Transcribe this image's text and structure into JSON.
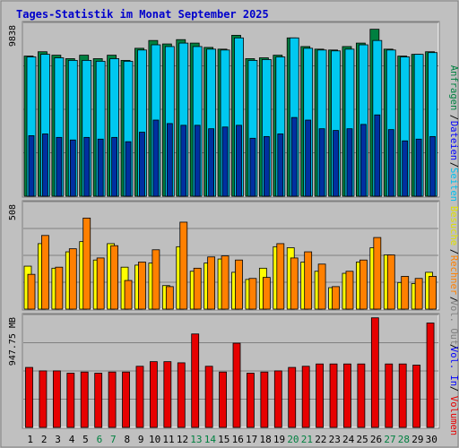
{
  "title": "Tages-Statistik im Monat September 2025",
  "colors": {
    "background": "#c0c0c0",
    "panel": "#bfbfbf",
    "grid": "#808080",
    "title": "#0000cc",
    "anfragen": "#008040",
    "dateien": "#00c8f0",
    "seiten": "#00a0d0",
    "besuche": "#ffff00",
    "rechner": "#ff8000",
    "volumen": "#e60000",
    "weekend": "#008040",
    "weekday": "#000000"
  },
  "chart_data": [
    {
      "type": "bar",
      "panel": "top",
      "y_max_label": "9838",
      "ylim": [
        0,
        9838
      ],
      "grid": true,
      "categories": [
        1,
        2,
        3,
        4,
        5,
        6,
        7,
        8,
        9,
        10,
        11,
        12,
        13,
        14,
        15,
        16,
        17,
        18,
        19,
        20,
        21,
        22,
        23,
        24,
        25,
        26,
        27,
        28,
        29,
        30
      ],
      "weekend_days": [
        6,
        7,
        13,
        14,
        20,
        21,
        27,
        28
      ],
      "series": [
        {
          "name": "Anfragen",
          "values": [
            8100,
            8350,
            8150,
            7950,
            8150,
            7950,
            8150,
            7850,
            8550,
            9000,
            8800,
            9050,
            8850,
            8600,
            8500,
            9300,
            7950,
            8000,
            8150,
            9150,
            8650,
            8500,
            8450,
            8650,
            8850,
            9650,
            8500,
            8100,
            8200,
            8350
          ]
        },
        {
          "name": "Dateien",
          "values": [
            8050,
            8200,
            8000,
            7850,
            7850,
            7800,
            7950,
            7800,
            8450,
            8750,
            8650,
            8850,
            8650,
            8500,
            8450,
            9150,
            7850,
            7900,
            8050,
            9150,
            8550,
            8450,
            8400,
            8500,
            8750,
            9000,
            8450,
            8050,
            8200,
            8300
          ]
        },
        {
          "name": "Seiten",
          "values": [
            3500,
            3600,
            3400,
            3250,
            3400,
            3300,
            3400,
            3150,
            3700,
            4400,
            4200,
            4100,
            4100,
            3900,
            4000,
            4100,
            3350,
            3450,
            3600,
            4550,
            4400,
            3900,
            3800,
            3900,
            4150,
            4700,
            3850,
            3200,
            3300,
            3450
          ]
        }
      ],
      "side_labels": [
        "Anfragen",
        "Dateien",
        "Seiten"
      ]
    },
    {
      "type": "bar",
      "panel": "middle",
      "y_max_label": "508",
      "ylim": [
        0,
        508
      ],
      "grid": true,
      "categories": [
        1,
        2,
        3,
        4,
        5,
        6,
        7,
        8,
        9,
        10,
        11,
        12,
        13,
        14,
        15,
        16,
        17,
        18,
        19,
        20,
        21,
        22,
        23,
        24,
        25,
        26,
        27,
        28,
        29,
        30
      ],
      "series": [
        {
          "name": "Besuche",
          "values": [
            210,
            320,
            200,
            280,
            330,
            240,
            320,
            205,
            215,
            225,
            115,
            305,
            185,
            225,
            245,
            180,
            145,
            200,
            305,
            300,
            230,
            185,
            105,
            175,
            230,
            300,
            265,
            130,
            125,
            180
          ]
        },
        {
          "name": "Rechner",
          "values": [
            170,
            360,
            205,
            295,
            445,
            250,
            310,
            140,
            230,
            290,
            110,
            425,
            200,
            255,
            260,
            240,
            150,
            155,
            320,
            250,
            280,
            220,
            110,
            185,
            240,
            350,
            265,
            160,
            150,
            160
          ]
        }
      ],
      "side_labels": [
        "Besuche",
        "Rechner"
      ]
    },
    {
      "type": "bar",
      "panel": "bottom",
      "y_max_label": "947.75 MB",
      "ylim": [
        0,
        947.75
      ],
      "grid": true,
      "categories": [
        1,
        2,
        3,
        4,
        5,
        6,
        7,
        8,
        9,
        10,
        11,
        12,
        13,
        14,
        15,
        16,
        17,
        18,
        19,
        20,
        21,
        22,
        23,
        24,
        25,
        26,
        27,
        28,
        29,
        30
      ],
      "series": [
        {
          "name": "Volumen",
          "values": [
            520,
            490,
            490,
            470,
            480,
            470,
            480,
            480,
            530,
            570,
            570,
            560,
            810,
            530,
            480,
            730,
            470,
            480,
            490,
            520,
            530,
            550,
            550,
            550,
            550,
            950,
            550,
            550,
            540,
            905
          ]
        }
      ],
      "side_labels": [
        "Volumen",
        "Vol. In",
        "Vol. Out"
      ]
    }
  ]
}
